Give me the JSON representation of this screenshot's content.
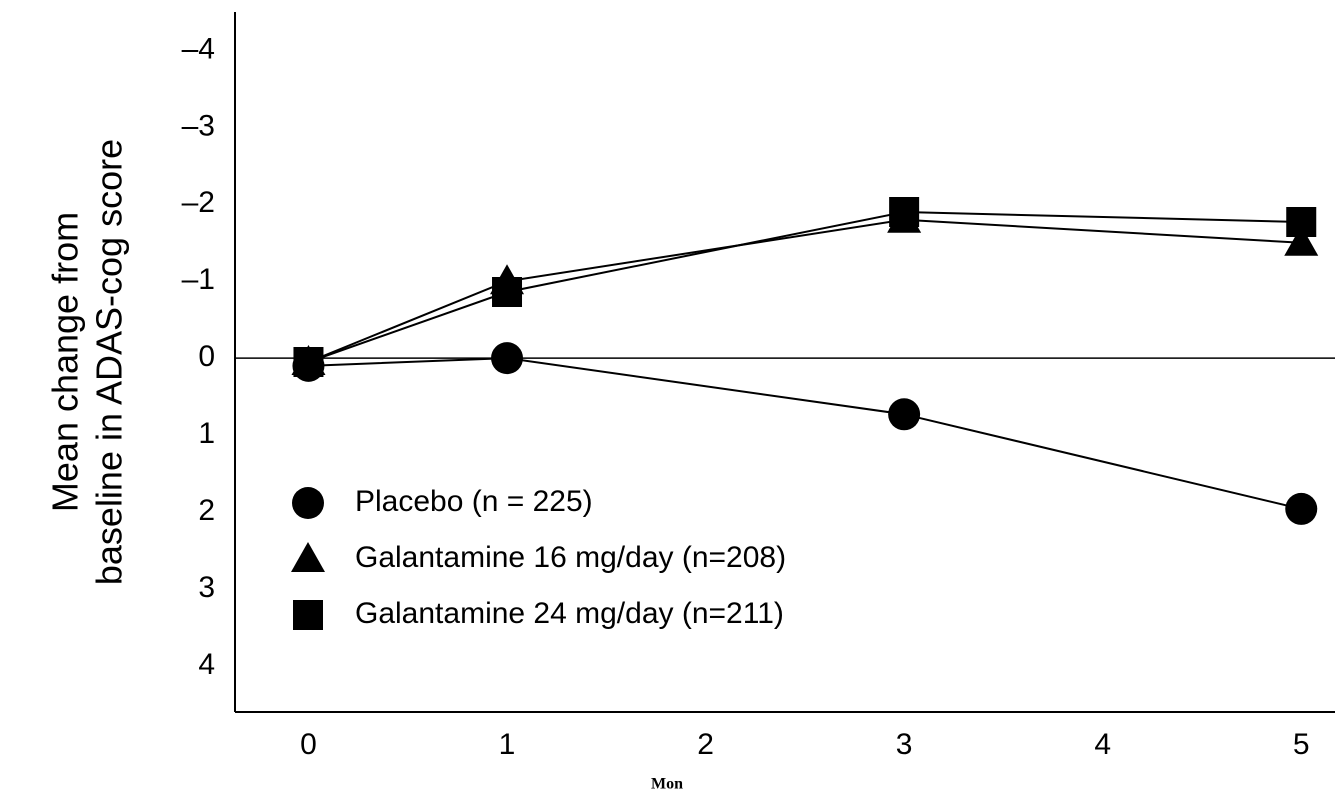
{
  "chart_data": {
    "type": "line",
    "xlabel": "Mon",
    "ylabel": [
      "Mean change from",
      "baseline in ADAS-cog score"
    ],
    "x": [
      0,
      1,
      3,
      5
    ],
    "series": [
      {
        "name": "Placebo (n = 225)",
        "color": "#000000",
        "marker": "circle",
        "values": [
          0.1,
          0.0,
          0.73,
          1.96
        ]
      },
      {
        "name": "Galantamine 16 mg/day (n=208)",
        "color": "#000000",
        "marker": "triangle",
        "values": [
          0.05,
          -1.0,
          -1.8,
          -1.5
        ]
      },
      {
        "name": "Galantamine 24 mg/day (n=211)",
        "color": "#000000",
        "marker": "square",
        "values": [
          0.05,
          -0.86,
          -1.9,
          -1.77
        ]
      }
    ],
    "xlim": [
      -0.37,
      5.17
    ],
    "xticks": [
      0,
      1,
      2,
      3,
      4,
      5
    ],
    "ylim": [
      4.6,
      -4.5
    ],
    "yticks": [
      {
        "value": -4,
        "label": "–4"
      },
      {
        "value": -3,
        "label": "–3"
      },
      {
        "value": -2,
        "label": "–2"
      },
      {
        "value": -1,
        "label": "–1"
      },
      0,
      1,
      2,
      3,
      4
    ],
    "zero_line": true,
    "legend": "lower left"
  }
}
